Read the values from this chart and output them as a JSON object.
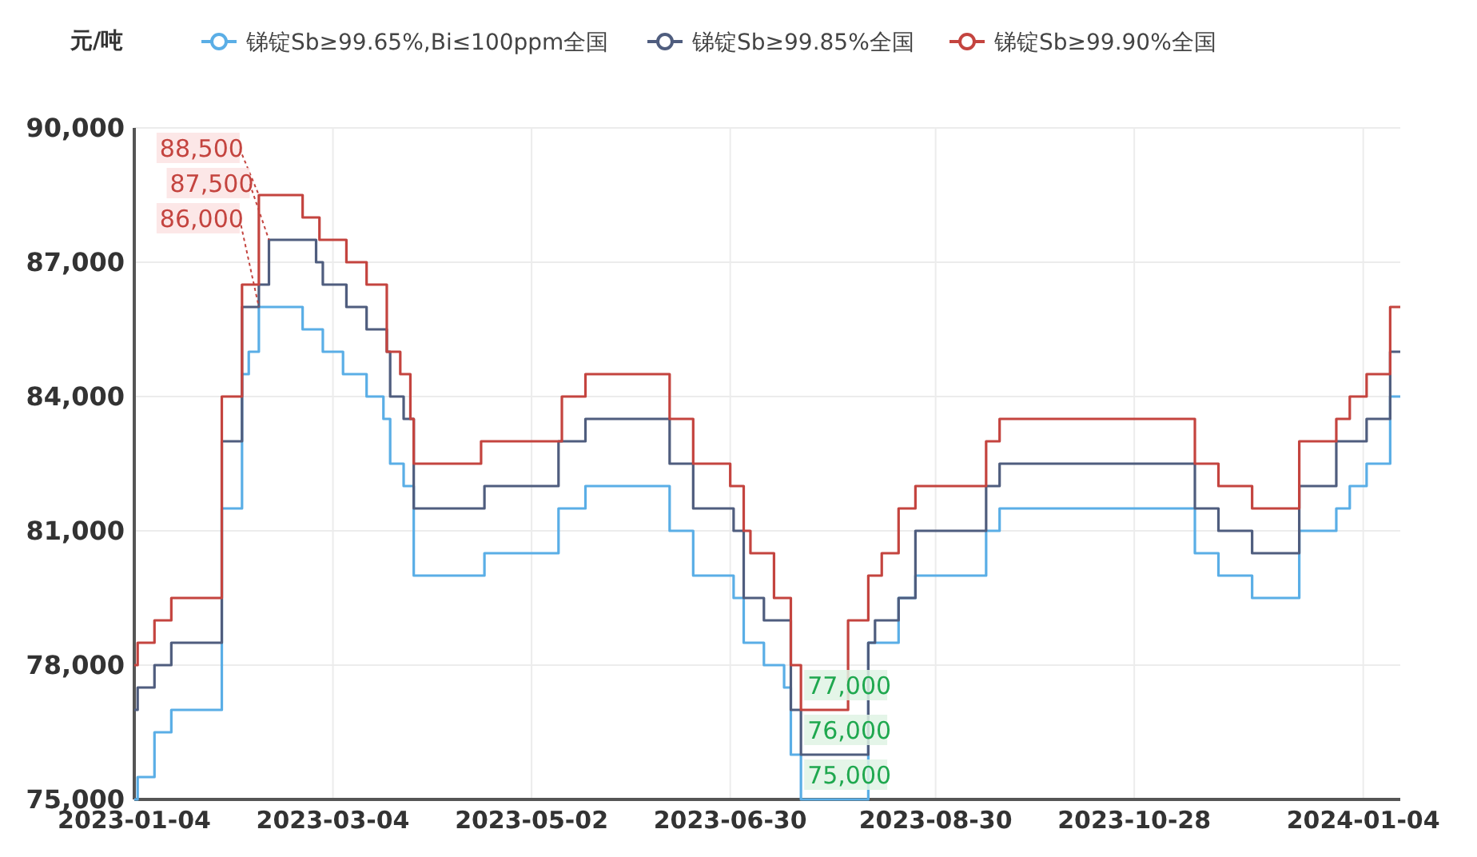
{
  "chart_data": {
    "type": "step",
    "ylabel": "元/吨",
    "xlim": [
      "2023-01-04",
      "2024-01-15"
    ],
    "xticks": [
      "2023-01-04",
      "2023-03-04",
      "2023-05-02",
      "2023-06-30",
      "2023-08-30",
      "2023-10-28",
      "2024-01-04"
    ],
    "ylim": [
      75000,
      90000
    ],
    "yticks": [
      {
        "value": 75000,
        "label": "75,000"
      },
      {
        "value": 78000,
        "label": "78,000"
      },
      {
        "value": 81000,
        "label": "81,000"
      },
      {
        "value": 84000,
        "label": "84,000"
      },
      {
        "value": 87000,
        "label": "87,000"
      },
      {
        "value": 90000,
        "label": "90,000"
      }
    ],
    "grid": true,
    "legend": "top",
    "series": [
      {
        "name": "锑锭Sb≥99.65%,Bi≤100ppm全国",
        "color": "#5aaee6",
        "x": [
          "2023-01-04",
          "2023-01-05",
          "2023-01-10",
          "2023-01-15",
          "2023-01-30",
          "2023-02-05",
          "2023-02-07",
          "2023-02-10",
          "2023-02-23",
          "2023-03-01",
          "2023-03-07",
          "2023-03-14",
          "2023-03-19",
          "2023-03-21",
          "2023-03-25",
          "2023-03-28",
          "2023-04-18",
          "2023-05-10",
          "2023-05-18",
          "2023-06-12",
          "2023-06-19",
          "2023-07-01",
          "2023-07-04",
          "2023-07-10",
          "2023-07-16",
          "2023-07-18",
          "2023-07-21",
          "2023-08-10",
          "2023-08-19",
          "2023-08-24",
          "2023-09-14",
          "2023-09-18",
          "2023-11-15",
          "2023-11-22",
          "2023-12-02",
          "2023-12-16",
          "2023-12-27",
          "2023-12-31",
          "2024-01-05",
          "2024-01-12",
          "2024-01-15"
        ],
        "values": [
          75000,
          75500,
          76500,
          77000,
          81500,
          84500,
          85000,
          86000,
          85500,
          85000,
          84500,
          84000,
          83500,
          82500,
          82000,
          80000,
          80500,
          81500,
          82000,
          81000,
          80000,
          79500,
          78500,
          78000,
          77500,
          76000,
          75000,
          78500,
          79500,
          80000,
          81000,
          81500,
          80500,
          80000,
          79500,
          81000,
          81500,
          82000,
          82500,
          84000,
          84000
        ]
      },
      {
        "name": "锑锭Sb≥99.85%全国",
        "color": "#4f5d7e",
        "x": [
          "2023-01-04",
          "2023-01-05",
          "2023-01-10",
          "2023-01-15",
          "2023-01-30",
          "2023-02-05",
          "2023-02-10",
          "2023-02-13",
          "2023-02-27",
          "2023-03-01",
          "2023-03-08",
          "2023-03-14",
          "2023-03-20",
          "2023-03-21",
          "2023-03-25",
          "2023-03-28",
          "2023-04-18",
          "2023-05-10",
          "2023-05-18",
          "2023-06-12",
          "2023-06-19",
          "2023-07-01",
          "2023-07-04",
          "2023-07-10",
          "2023-07-18",
          "2023-07-21",
          "2023-08-10",
          "2023-08-12",
          "2023-08-19",
          "2023-08-24",
          "2023-09-14",
          "2023-09-18",
          "2023-11-15",
          "2023-11-22",
          "2023-12-02",
          "2023-12-16",
          "2023-12-27",
          "2024-01-05",
          "2024-01-12",
          "2024-01-15"
        ],
        "values": [
          77000,
          77500,
          78000,
          78500,
          83000,
          86000,
          86500,
          87500,
          87000,
          86500,
          86000,
          85500,
          85000,
          84000,
          83500,
          81500,
          82000,
          83000,
          83500,
          82500,
          81500,
          81000,
          79500,
          79000,
          77000,
          76000,
          78500,
          79000,
          79500,
          81000,
          82000,
          82500,
          81500,
          81000,
          80500,
          82000,
          83000,
          83500,
          85000,
          85000
        ]
      },
      {
        "name": "锑锭Sb≥99.90%全国",
        "color": "#c4443f",
        "x": [
          "2023-01-04",
          "2023-01-05",
          "2023-01-10",
          "2023-01-15",
          "2023-01-30",
          "2023-02-05",
          "2023-02-10",
          "2023-02-23",
          "2023-02-28",
          "2023-03-08",
          "2023-03-14",
          "2023-03-20",
          "2023-03-24",
          "2023-03-27",
          "2023-03-28",
          "2023-04-17",
          "2023-05-11",
          "2023-05-18",
          "2023-06-12",
          "2023-06-19",
          "2023-06-30",
          "2023-07-04",
          "2023-07-06",
          "2023-07-13",
          "2023-07-18",
          "2023-07-21",
          "2023-08-04",
          "2023-08-10",
          "2023-08-14",
          "2023-08-19",
          "2023-08-24",
          "2023-09-14",
          "2023-09-18",
          "2023-11-15",
          "2023-11-22",
          "2023-12-02",
          "2023-12-16",
          "2023-12-27",
          "2023-12-31",
          "2024-01-05",
          "2024-01-12",
          "2024-01-15"
        ],
        "values": [
          78000,
          78500,
          79000,
          79500,
          84000,
          86500,
          88500,
          88000,
          87500,
          87000,
          86500,
          85000,
          84500,
          83500,
          82500,
          83000,
          84000,
          84500,
          83500,
          82500,
          82000,
          81000,
          80500,
          79500,
          78000,
          77000,
          79000,
          80000,
          80500,
          81500,
          82000,
          83000,
          83500,
          82500,
          82000,
          81500,
          83000,
          83500,
          84000,
          84500,
          86000,
          86000
        ]
      }
    ],
    "annotations": [
      {
        "text": "88,500",
        "x": "2023-02-10",
        "y": 88500
      },
      {
        "text": "87,500",
        "x": "2023-02-13",
        "y": 87500
      },
      {
        "text": "86,000",
        "x": "2023-02-10",
        "y": 86000
      },
      {
        "text": "77,000",
        "x": "2023-07-21",
        "y": 77000
      },
      {
        "text": "76,000",
        "x": "2023-07-21",
        "y": 76000
      },
      {
        "text": "75,000",
        "x": "2023-07-21",
        "y": 75000
      }
    ]
  }
}
